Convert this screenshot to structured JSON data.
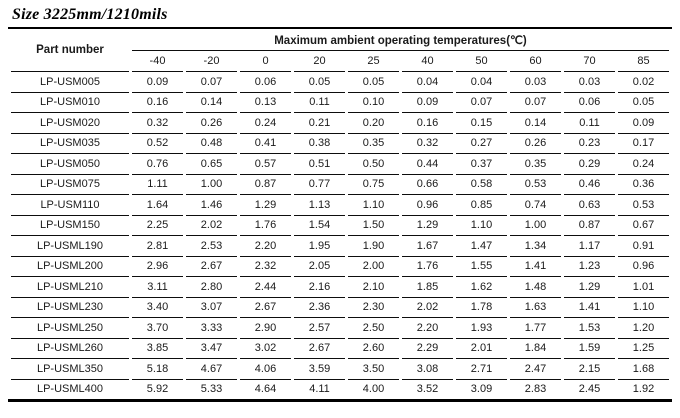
{
  "title": "Size 3225mm/1210mils",
  "table": {
    "part_number_header": "Part number",
    "group_header": "Maximum ambient operating temperatures(℃)",
    "temp_columns": [
      "-40",
      "-20",
      "0",
      "20",
      "25",
      "40",
      "50",
      "60",
      "70",
      "85"
    ],
    "rows": [
      {
        "part": "LP-USM005",
        "values": [
          "0.09",
          "0.07",
          "0.06",
          "0.05",
          "0.05",
          "0.04",
          "0.04",
          "0.03",
          "0.03",
          "0.02"
        ]
      },
      {
        "part": "LP-USM010",
        "values": [
          "0.16",
          "0.14",
          "0.13",
          "0.11",
          "0.10",
          "0.09",
          "0.07",
          "0.07",
          "0.06",
          "0.05"
        ]
      },
      {
        "part": "LP-USM020",
        "values": [
          "0.32",
          "0.26",
          "0.24",
          "0.21",
          "0.20",
          "0.16",
          "0.15",
          "0.14",
          "0.11",
          "0.09"
        ]
      },
      {
        "part": "LP-USM035",
        "values": [
          "0.52",
          "0.48",
          "0.41",
          "0.38",
          "0.35",
          "0.32",
          "0.27",
          "0.26",
          "0.23",
          "0.17"
        ]
      },
      {
        "part": "LP-USM050",
        "values": [
          "0.76",
          "0.65",
          "0.57",
          "0.51",
          "0.50",
          "0.44",
          "0.37",
          "0.35",
          "0.29",
          "0.24"
        ]
      },
      {
        "part": "LP-USM075",
        "values": [
          "1.11",
          "1.00",
          "0.87",
          "0.77",
          "0.75",
          "0.66",
          "0.58",
          "0.53",
          "0.46",
          "0.36"
        ]
      },
      {
        "part": "LP-USM110",
        "values": [
          "1.64",
          "1.46",
          "1.29",
          "1.13",
          "1.10",
          "0.96",
          "0.85",
          "0.74",
          "0.63",
          "0.53"
        ]
      },
      {
        "part": "LP-USM150",
        "values": [
          "2.25",
          "2.02",
          "1.76",
          "1.54",
          "1.50",
          "1.29",
          "1.10",
          "1.00",
          "0.87",
          "0.67"
        ]
      },
      {
        "part": "LP-USML190",
        "values": [
          "2.81",
          "2.53",
          "2.20",
          "1.95",
          "1.90",
          "1.67",
          "1.47",
          "1.34",
          "1.17",
          "0.91"
        ]
      },
      {
        "part": "LP-USML200",
        "values": [
          "2.96",
          "2.67",
          "2.32",
          "2.05",
          "2.00",
          "1.76",
          "1.55",
          "1.41",
          "1.23",
          "0.96"
        ]
      },
      {
        "part": "LP-USML210",
        "values": [
          "3.11",
          "2.80",
          "2.44",
          "2.16",
          "2.10",
          "1.85",
          "1.62",
          "1.48",
          "1.29",
          "1.01"
        ]
      },
      {
        "part": "LP-USML230",
        "values": [
          "3.40",
          "3.07",
          "2.67",
          "2.36",
          "2.30",
          "2.02",
          "1.78",
          "1.63",
          "1.41",
          "1.10"
        ]
      },
      {
        "part": "LP-USML250",
        "values": [
          "3.70",
          "3.33",
          "2.90",
          "2.57",
          "2.50",
          "2.20",
          "1.93",
          "1.77",
          "1.53",
          "1.20"
        ]
      },
      {
        "part": "LP-USML260",
        "values": [
          "3.85",
          "3.47",
          "3.02",
          "2.67",
          "2.60",
          "2.29",
          "2.01",
          "1.84",
          "1.59",
          "1.25"
        ]
      },
      {
        "part": "LP-USML350",
        "values": [
          "5.18",
          "4.67",
          "4.06",
          "3.59",
          "3.50",
          "3.08",
          "2.71",
          "2.47",
          "2.15",
          "1.68"
        ]
      },
      {
        "part": "LP-USML400",
        "values": [
          "5.92",
          "5.33",
          "4.64",
          "4.11",
          "4.00",
          "3.52",
          "3.09",
          "2.83",
          "2.45",
          "1.92"
        ]
      }
    ]
  }
}
